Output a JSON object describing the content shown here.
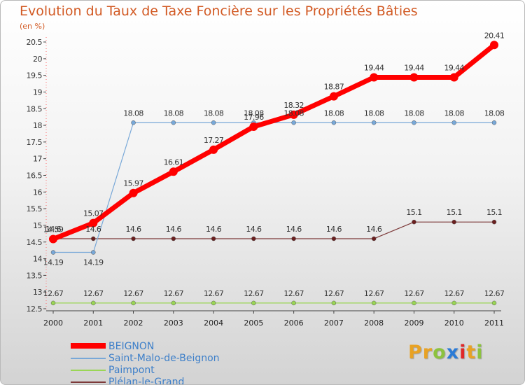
{
  "header": {
    "title": "Evolution du Taux de Taxe Foncière sur les Propriétés Bâties",
    "unit": "(en %)"
  },
  "chart_data": {
    "type": "line",
    "title": "Evolution du Taux de Taxe Foncière sur les Propriétés Bâties",
    "ylabel": "(en %)",
    "xlabel": "",
    "categories": [
      "2000",
      "2001",
      "2002",
      "2003",
      "2004",
      "2005",
      "2006",
      "2007",
      "2008",
      "2009",
      "2010",
      "2011"
    ],
    "ylim": [
      12.5,
      20.5
    ],
    "yticks": [
      "12.5",
      "13",
      "13.5",
      "14",
      "14.5",
      "15",
      "15.5",
      "16",
      "16.5",
      "17",
      "17.5",
      "18",
      "18.5",
      "19",
      "19.5",
      "20",
      "20.5"
    ],
    "grid": false,
    "series": [
      {
        "name": "BEIGNON",
        "color": "#ff0000",
        "values": [
          14.59,
          15.07,
          15.97,
          16.61,
          17.27,
          17.96,
          18.32,
          18.87,
          19.44,
          19.44,
          19.44,
          20.41
        ],
        "labels": [
          "14.59",
          "15.07",
          "15.97",
          "16.61",
          "17.27",
          "17.96",
          "18.32",
          "18.87",
          "19.44",
          "19.44",
          "19.44",
          "20.41"
        ]
      },
      {
        "name": "Saint-Malo-de-Beignon",
        "color": "#78a8d8",
        "values": [
          14.19,
          14.19,
          18.08,
          18.08,
          18.08,
          18.08,
          18.08,
          18.08,
          18.08,
          18.08,
          18.08,
          18.08
        ],
        "labels": [
          "14.19",
          "14.19",
          "18.08",
          "18.08",
          "18.08",
          "18.08",
          "18.08",
          "18.08",
          "18.08",
          "18.08",
          "18.08",
          "18.08"
        ]
      },
      {
        "name": "Paimpont",
        "color": "#9ad655",
        "values": [
          12.67,
          12.67,
          12.67,
          12.67,
          12.67,
          12.67,
          12.67,
          12.67,
          12.67,
          12.67,
          12.67,
          12.67
        ],
        "labels": [
          "12.67",
          "12.67",
          "12.67",
          "12.67",
          "12.67",
          "12.67",
          "12.67",
          "12.67",
          "12.67",
          "12.67",
          "12.67",
          "12.67"
        ]
      },
      {
        "name": "Plélan-le-Grand",
        "color": "#7d3a3a",
        "values": [
          14.6,
          14.6,
          14.6,
          14.6,
          14.6,
          14.6,
          14.6,
          14.6,
          14.6,
          15.1,
          15.1,
          15.1
        ],
        "labels": [
          "14.6",
          "14.6",
          "14.6",
          "14.6",
          "14.6",
          "14.6",
          "14.6",
          "14.6",
          "14.6",
          "15.1",
          "15.1",
          "15.1"
        ]
      }
    ]
  },
  "legend": {
    "position": "bottom-left",
    "items": [
      {
        "label": "BEIGNON",
        "color": "#ff0000"
      },
      {
        "label": "Saint-Malo-de-Beignon",
        "color": "#78a8d8"
      },
      {
        "label": "Paimpont",
        "color": "#9ad655"
      },
      {
        "label": "Plélan-le-Grand",
        "color": "#7d3a3a"
      }
    ]
  },
  "logo": {
    "letters": [
      "P",
      "r",
      "o",
      "x",
      "i",
      "t",
      "i"
    ],
    "colors": [
      "#e8a224",
      "#e8a224",
      "#8cc23f",
      "#2b7bd6",
      "#e02727",
      "#e8a224",
      "#8cc23f"
    ]
  }
}
